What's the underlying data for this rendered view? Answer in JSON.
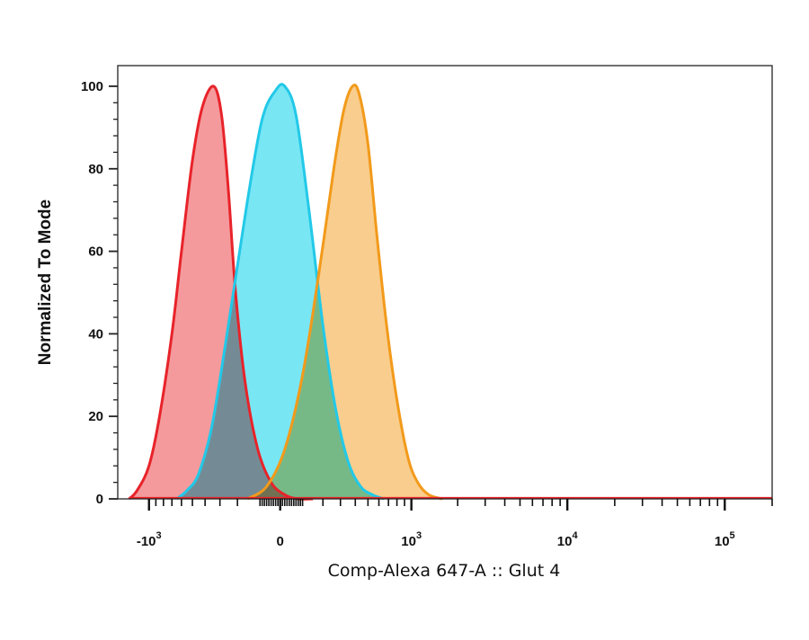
{
  "chart_data": {
    "type": "area",
    "title": "",
    "xlabel": "Comp-Alexa 647-A :: Glut 4",
    "ylabel": "Normalized To Mode",
    "x_scale": "biexponential",
    "xlim": [
      -1600,
      200000
    ],
    "ylim": [
      0,
      105
    ],
    "y_ticks": [
      "0",
      "20",
      "40",
      "60",
      "80",
      "100"
    ],
    "x_ticks": [
      {
        "value": -1000,
        "base": "-10",
        "exp": "3"
      },
      {
        "value": 0,
        "base": "0",
        "exp": ""
      },
      {
        "value": 1000,
        "base": "10",
        "exp": "3"
      },
      {
        "value": 10000,
        "base": "10",
        "exp": "4"
      },
      {
        "value": 100000,
        "base": "10",
        "exp": "5"
      }
    ],
    "grid": false,
    "series": [
      {
        "color": "#e8232a",
        "fill": "#f49a9c",
        "x": [
          -1350,
          -1200,
          -1000,
          -850,
          -700,
          -600,
          -500,
          -420,
          -340,
          -290,
          -250,
          -210,
          -160,
          -100,
          -40,
          20,
          80,
          150
        ],
        "y": [
          0,
          2,
          8,
          20,
          40,
          60,
          82,
          95,
          100,
          93,
          75,
          50,
          28,
          12,
          4,
          1,
          0,
          0
        ]
      },
      {
        "color": "#22c9e8",
        "fill": "#79e6f4",
        "x": [
          -650,
          -550,
          -450,
          -350,
          -250,
          -150,
          -80,
          -20,
          20,
          70,
          130,
          200,
          270,
          350,
          440,
          540,
          650
        ],
        "y": [
          0,
          2,
          6,
          18,
          42,
          72,
          92,
          99,
          100,
          93,
          70,
          42,
          22,
          9,
          3,
          1,
          0
        ]
      },
      {
        "color": "#f29a1b",
        "fill": "#f9cd8d",
        "x": [
          -150,
          -60,
          20,
          100,
          180,
          260,
          320,
          380,
          430,
          500,
          580,
          680,
          800,
          950,
          1100,
          1300,
          1600
        ],
        "y": [
          0,
          3,
          12,
          30,
          55,
          80,
          94,
          100,
          98,
          86,
          64,
          42,
          24,
          10,
          4,
          1,
          0
        ]
      }
    ]
  }
}
